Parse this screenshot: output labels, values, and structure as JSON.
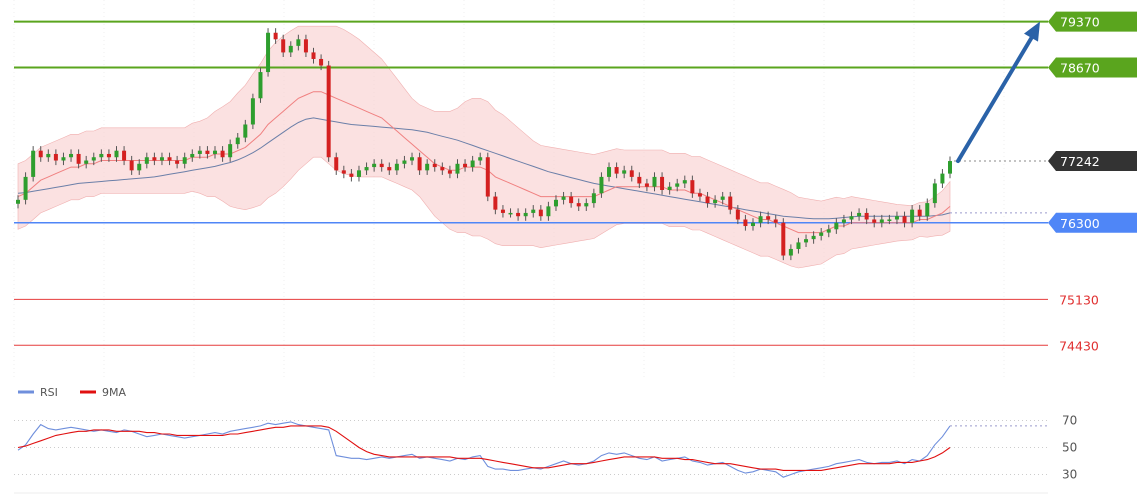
{
  "chart_data": [
    {
      "type": "candlestick",
      "title": "",
      "ylim": [
        73900,
        79700
      ],
      "horizontal_levels": [
        {
          "value": 79370,
          "label": "79370",
          "kind": "resistance",
          "color": "#5aa51e"
        },
        {
          "value": 78670,
          "label": "78670",
          "kind": "resistance",
          "color": "#5aa51e"
        },
        {
          "value": 76300,
          "label": "76300",
          "kind": "pivot",
          "color": "#4f86f7"
        },
        {
          "value": 75130,
          "label": "75130",
          "kind": "support",
          "color": "#e63b3b"
        },
        {
          "value": 74430,
          "label": "74430",
          "kind": "support",
          "color": "#e63b3b"
        }
      ],
      "last_price": {
        "value": 77242,
        "label": "77242",
        "color": "#333333"
      },
      "projection": {
        "from": 77242,
        "to": 79370,
        "color": "#2a62a8"
      },
      "close_series": [
        76650,
        77000,
        77400,
        77300,
        77350,
        77250,
        77300,
        77350,
        77200,
        77250,
        77300,
        77350,
        77300,
        77400,
        77250,
        77100,
        77200,
        77300,
        77250,
        77300,
        77250,
        77200,
        77300,
        77350,
        77400,
        77350,
        77400,
        77300,
        77500,
        77600,
        77800,
        78200,
        78600,
        79200,
        79100,
        78900,
        79000,
        79100,
        78900,
        78800,
        78700,
        77300,
        77100,
        77050,
        77000,
        77100,
        77150,
        77200,
        77150,
        77100,
        77200,
        77250,
        77300,
        77100,
        77200,
        77150,
        77100,
        77050,
        77200,
        77150,
        77250,
        77300,
        76700,
        76500,
        76450,
        76450,
        76400,
        76450,
        76500,
        76400,
        76550,
        76650,
        76700,
        76600,
        76550,
        76600,
        76750,
        77000,
        77150,
        77050,
        77100,
        77000,
        76900,
        76850,
        77000,
        76800,
        76850,
        76900,
        76950,
        76750,
        76700,
        76600,
        76650,
        76700,
        76500,
        76350,
        76250,
        76300,
        76400,
        76350,
        76300,
        75800,
        75900,
        76000,
        76050,
        76100,
        76150,
        76200,
        76300,
        76350,
        76400,
        76450,
        76350,
        76300,
        76350,
        76350,
        76400,
        76300,
        76500,
        76400,
        76600,
        76900,
        77050,
        77242
      ],
      "ma_fast": [
        76700,
        76750,
        76850,
        76950,
        77000,
        77050,
        77100,
        77150,
        77150,
        77200,
        77200,
        77250,
        77250,
        77250,
        77250,
        77250,
        77250,
        77250,
        77250,
        77250,
        77250,
        77250,
        77250,
        77300,
        77300,
        77300,
        77350,
        77350,
        77350,
        77400,
        77450,
        77550,
        77650,
        77800,
        77900,
        78000,
        78100,
        78200,
        78250,
        78300,
        78300,
        78250,
        78200,
        78150,
        78100,
        78050,
        78000,
        77950,
        77900,
        77800,
        77700,
        77600,
        77500,
        77400,
        77300,
        77200,
        77150,
        77100,
        77100,
        77150,
        77150,
        77150,
        77100,
        77000,
        76950,
        76900,
        76850,
        76800,
        76750,
        76700,
        76700,
        76700,
        76700,
        76700,
        76700,
        76700,
        76700,
        76750,
        76800,
        76850,
        76850,
        76850,
        76850,
        76850,
        76850,
        76850,
        76800,
        76800,
        76800,
        76750,
        76750,
        76700,
        76650,
        76600,
        76550,
        76500,
        76450,
        76400,
        76350,
        76350,
        76300,
        76250,
        76200,
        76150,
        76150,
        76150,
        76150,
        76200,
        76250,
        76250,
        76300,
        76300,
        76300,
        76300,
        76300,
        76300,
        76300,
        76300,
        76300,
        76350,
        76350,
        76400,
        76450,
        76550
      ],
      "ma_slow": [
        76750,
        76760,
        76780,
        76800,
        76820,
        76840,
        76860,
        76880,
        76900,
        76910,
        76920,
        76930,
        76940,
        76950,
        76960,
        76970,
        76980,
        76990,
        77000,
        77020,
        77040,
        77060,
        77080,
        77100,
        77120,
        77140,
        77160,
        77190,
        77220,
        77260,
        77310,
        77370,
        77440,
        77520,
        77600,
        77680,
        77760,
        77830,
        77880,
        77900,
        77880,
        77860,
        77840,
        77820,
        77800,
        77790,
        77780,
        77770,
        77760,
        77750,
        77740,
        77730,
        77720,
        77700,
        77680,
        77650,
        77620,
        77590,
        77560,
        77520,
        77480,
        77440,
        77400,
        77360,
        77320,
        77280,
        77240,
        77200,
        77160,
        77120,
        77080,
        77050,
        77020,
        76990,
        76960,
        76930,
        76900,
        76880,
        76860,
        76840,
        76820,
        76800,
        76780,
        76760,
        76740,
        76720,
        76700,
        76680,
        76660,
        76640,
        76620,
        76600,
        76580,
        76560,
        76540,
        76520,
        76500,
        76480,
        76460,
        76440,
        76420,
        76400,
        76390,
        76380,
        76370,
        76360,
        76360,
        76360,
        76370,
        76380,
        76390,
        76400,
        76400,
        76400,
        76400,
        76400,
        76400,
        76400,
        76400,
        76400,
        76400,
        76410,
        76420,
        76450
      ],
      "band_width": [
        500,
        500,
        500,
        500,
        500,
        500,
        500,
        500,
        500,
        500,
        500,
        500,
        500,
        500,
        500,
        500,
        500,
        500,
        500,
        500,
        500,
        500,
        500,
        520,
        550,
        600,
        650,
        720,
        800,
        880,
        950,
        1020,
        1080,
        1120,
        1150,
        1150,
        1130,
        1100,
        1050,
        1000,
        1000,
        1050,
        1100,
        1100,
        1080,
        1050,
        1000,
        950,
        900,
        850,
        800,
        750,
        700,
        700,
        750,
        800,
        850,
        900,
        950,
        1000,
        1050,
        1050,
        1050,
        1020,
        1000,
        950,
        900,
        850,
        800,
        780,
        760,
        740,
        720,
        700,
        680,
        660,
        640,
        620,
        600,
        580,
        560,
        560,
        560,
        560,
        560,
        560,
        560,
        560,
        560,
        560,
        560,
        560,
        560,
        560,
        560,
        560,
        560,
        560,
        560,
        560,
        560,
        560,
        560,
        540,
        520,
        500,
        480,
        460,
        440,
        420,
        400,
        380,
        360,
        340,
        320,
        300,
        280,
        270,
        260,
        260,
        270,
        300,
        340,
        380,
        420
      ]
    },
    {
      "type": "line",
      "title": "",
      "ylim": [
        20,
        80
      ],
      "y_ticks": [
        "70",
        "50",
        "30"
      ],
      "y_tick_values": [
        70,
        50,
        30
      ],
      "series": [
        {
          "name": "RSI",
          "color": "#6f8fdc",
          "values": [
            48,
            52,
            60,
            67,
            64,
            63,
            64,
            65,
            64,
            63,
            62,
            63,
            62,
            61,
            63,
            62,
            60,
            58,
            59,
            60,
            59,
            58,
            57,
            58,
            59,
            60,
            61,
            60,
            62,
            63,
            64,
            65,
            66,
            68,
            67,
            68,
            69,
            67,
            66,
            65,
            64,
            63,
            44,
            43,
            42,
            42,
            41,
            42,
            43,
            42,
            43,
            44,
            45,
            42,
            43,
            42,
            41,
            40,
            42,
            41,
            43,
            44,
            36,
            34,
            34,
            33,
            33,
            34,
            35,
            34,
            36,
            38,
            40,
            38,
            37,
            38,
            40,
            44,
            46,
            45,
            46,
            44,
            42,
            41,
            43,
            40,
            41,
            42,
            43,
            40,
            39,
            37,
            38,
            39,
            36,
            33,
            31,
            32,
            34,
            33,
            32,
            28,
            30,
            32,
            33,
            34,
            35,
            36,
            38,
            39,
            40,
            41,
            39,
            38,
            39,
            39,
            40,
            38,
            41,
            40,
            44,
            52,
            58,
            66
          ]
        },
        {
          "name": "9MA",
          "color": "#e01010",
          "values": [
            50,
            51,
            53,
            55,
            57,
            59,
            60,
            61,
            62,
            62,
            63,
            63,
            63,
            62,
            62,
            62,
            62,
            61,
            61,
            60,
            60,
            59,
            59,
            59,
            59,
            59,
            59,
            59,
            60,
            60,
            61,
            62,
            63,
            64,
            65,
            65,
            66,
            66,
            66,
            66,
            66,
            65,
            62,
            58,
            54,
            50,
            47,
            45,
            44,
            43,
            43,
            43,
            43,
            43,
            43,
            43,
            43,
            43,
            42,
            42,
            42,
            42,
            41,
            40,
            39,
            38,
            37,
            36,
            35,
            35,
            35,
            36,
            37,
            38,
            38,
            38,
            39,
            40,
            41,
            42,
            43,
            43,
            43,
            43,
            43,
            42,
            42,
            42,
            41,
            41,
            40,
            39,
            38,
            38,
            38,
            37,
            36,
            35,
            34,
            34,
            34,
            33,
            33,
            33,
            33,
            33,
            33,
            34,
            35,
            36,
            37,
            38,
            38,
            38,
            38,
            38,
            39,
            39,
            39,
            40,
            41,
            43,
            46,
            50
          ]
        }
      ]
    }
  ],
  "legend": [
    {
      "name": "RSI",
      "color": "#6f8fdc"
    },
    {
      "name": "9MA",
      "color": "#e01010"
    }
  ]
}
